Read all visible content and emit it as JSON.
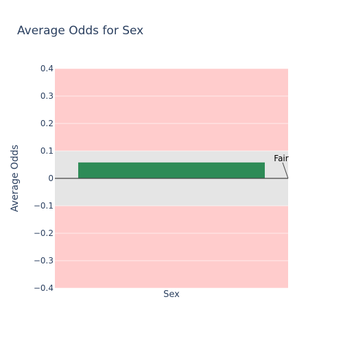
{
  "chart_data": {
    "type": "bar",
    "title": "Average Odds for Sex",
    "xlabel": "Sex",
    "ylabel": "Average Odds",
    "categories": [
      ""
    ],
    "values": [
      0.058
    ],
    "ylim": [
      -0.4,
      0.4
    ],
    "yticks": [
      "0.4",
      "0.3",
      "0.2",
      "0.1",
      "0",
      "−0.1",
      "−0.2",
      "−0.3",
      "−0.4"
    ],
    "fair_band": [
      -0.1,
      0.1
    ],
    "annotation": {
      "text": "Fair",
      "y": 0
    },
    "grid": true,
    "colors": {
      "bar": "#2e8b57",
      "unfair_band": "#ffcccc",
      "fair_band": "#e5e5e5",
      "grid": "#ffffff",
      "zero_line": "#444444",
      "text": "#2a3f5f"
    }
  }
}
